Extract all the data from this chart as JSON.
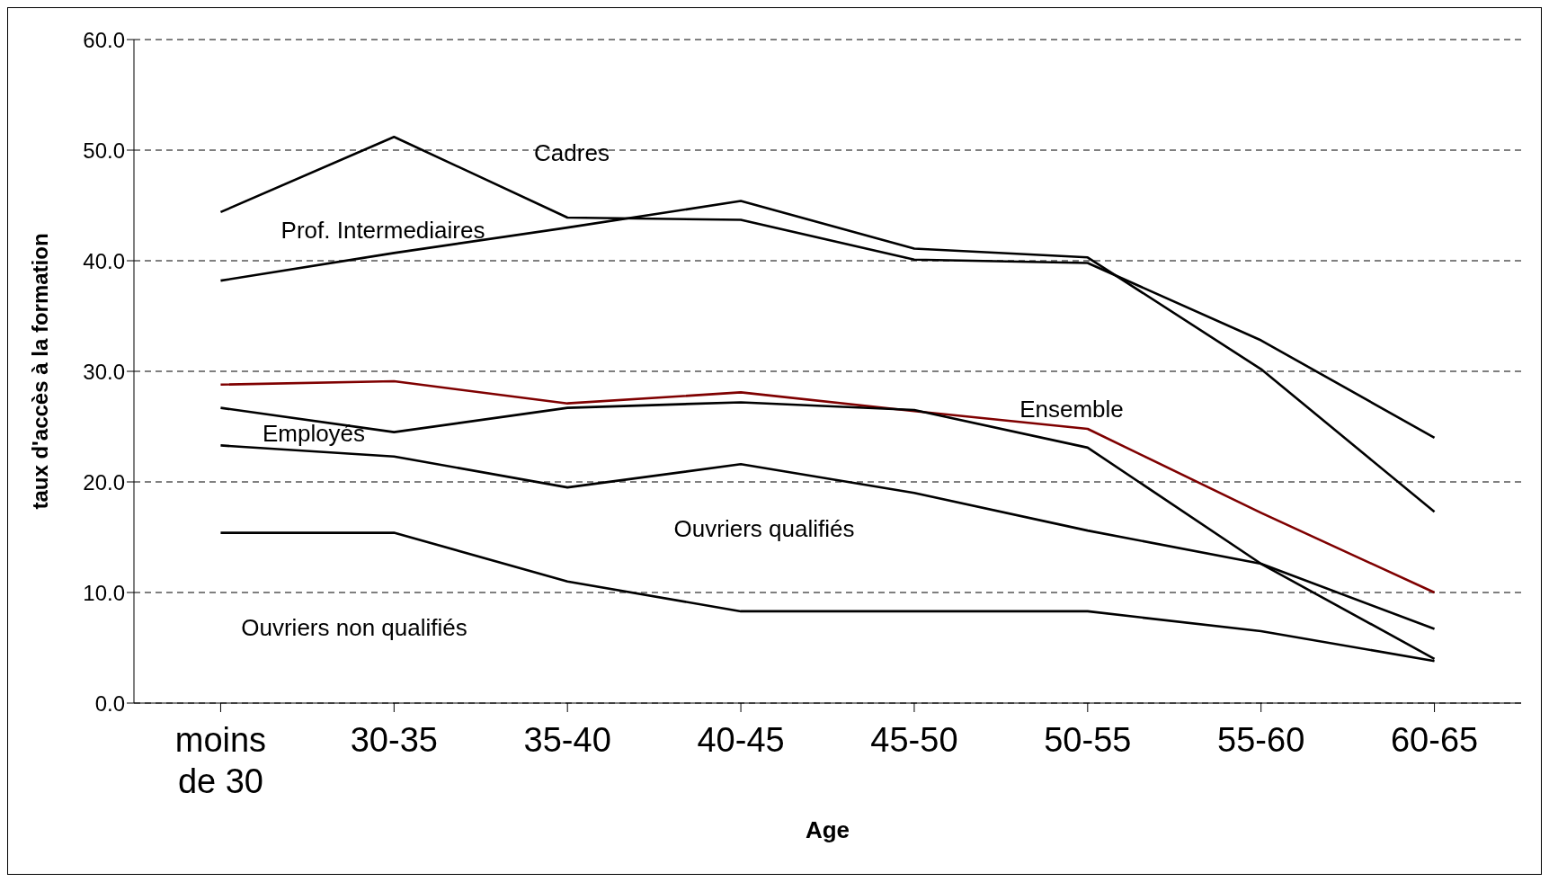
{
  "chart_data": {
    "type": "line",
    "xlabel": "Age",
    "ylabel": "taux d'accès à la formation",
    "categories": [
      "moins de 30",
      "30-35",
      "35-40",
      "40-45",
      "45-50",
      "50-55",
      "55-60",
      "60-65"
    ],
    "series": [
      {
        "color": "#000000",
        "values": [
          44.4,
          51.2,
          43.9,
          43.7,
          40.1,
          39.8,
          32.8,
          24.0
        ]
      },
      {
        "color": "#000000",
        "values": [
          38.2,
          40.7,
          43.0,
          45.4,
          41.1,
          40.3,
          30.2,
          17.3
        ]
      },
      {
        "color": "#7f0000",
        "values": [
          28.8,
          29.1,
          27.1,
          28.1,
          26.4,
          24.8,
          17.2,
          10.0
        ]
      },
      {
        "color": "#000000",
        "values": [
          26.7,
          24.5,
          26.7,
          27.2,
          26.5,
          23.1,
          12.6,
          4.0
        ]
      },
      {
        "color": "#000000",
        "values": [
          23.3,
          22.3,
          19.5,
          21.6,
          19.0,
          15.6,
          12.6,
          6.7
        ]
      },
      {
        "color": "#000000",
        "values": [
          15.4,
          15.4,
          11.0,
          8.3,
          8.3,
          8.3,
          6.5,
          3.8
        ]
      }
    ],
    "annotations": [
      "Cadres",
      "Prof. Intermediaires",
      "Ensemble",
      "Employés",
      "Ouvriers qualifiés",
      "Ouvriers non qualifiés"
    ],
    "ylim": [
      0,
      60
    ],
    "yticks": [
      {
        "value": 0,
        "label": "0.0"
      },
      {
        "value": 10,
        "label": "10.0"
      },
      {
        "value": 20,
        "label": "20.0"
      },
      {
        "value": 30,
        "label": "30.0"
      },
      {
        "value": 40,
        "label": "40.0"
      },
      {
        "value": 50,
        "label": "50.0"
      },
      {
        "value": 60,
        "label": "60.0"
      }
    ],
    "grid": "y",
    "legend": false,
    "marker": "none",
    "line_style": "solid"
  }
}
